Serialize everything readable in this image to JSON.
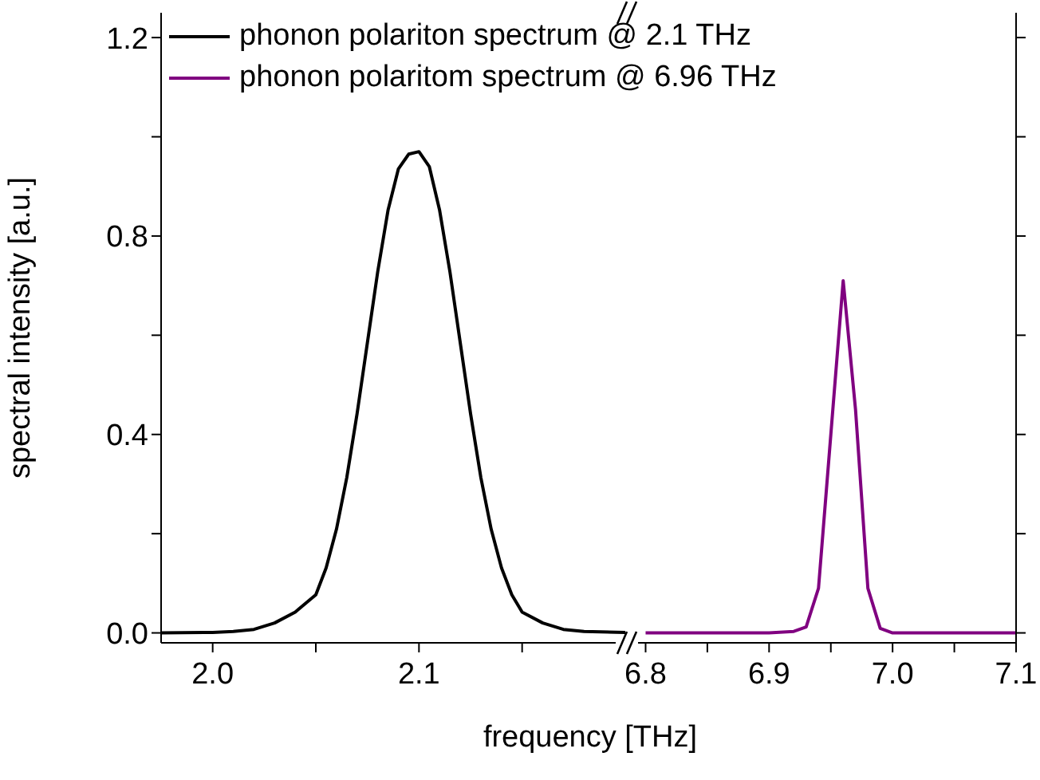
{
  "chart_data": [
    {
      "type": "line",
      "ylabel": "spectral intensity [a.u.]",
      "xlabel": "frequency [THz]",
      "xlim": [
        1.975,
        2.2
      ],
      "xticks": [
        {
          "value": 2,
          "label": "2.0"
        },
        {
          "value": 2.05,
          "label": null
        },
        2.1,
        {
          "value": 2.15,
          "label": null
        }
      ],
      "ylim": [
        -0.02,
        1.25
      ],
      "yticks": [
        {
          "value": 0,
          "label": "0.0"
        },
        {
          "value": 0.2,
          "label": null
        },
        0.4,
        {
          "value": 0.6,
          "label": null
        },
        0.8,
        {
          "value": 1,
          "label": null
        },
        1.2
      ],
      "legend": "top",
      "marker": "none",
      "line_style": "solid",
      "series": [
        {
          "name": "phonon polariton spectrum @ 2.1 THz",
          "color": "#000000",
          "x": [
            1.975,
            2.0,
            2.01,
            2.02,
            2.03,
            2.04,
            2.05,
            2.055,
            2.06,
            2.065,
            2.07,
            2.075,
            2.08,
            2.085,
            2.09,
            2.095,
            2.1,
            2.105,
            2.11,
            2.115,
            2.12,
            2.125,
            2.13,
            2.135,
            2.14,
            2.145,
            2.15,
            2.16,
            2.17,
            2.18,
            2.2
          ],
          "values": [
            0,
            0.001,
            0.003,
            0.007,
            0.02,
            0.042,
            0.077,
            0.131,
            0.209,
            0.313,
            0.442,
            0.585,
            0.728,
            0.852,
            0.935,
            0.965,
            0.97,
            0.94,
            0.852,
            0.728,
            0.585,
            0.442,
            0.313,
            0.209,
            0.131,
            0.077,
            0.042,
            0.02,
            0.007,
            0.003,
            0.001
          ]
        }
      ]
    },
    {
      "type": "line",
      "xlim": [
        6.79,
        7.1
      ],
      "xticks": [
        6.8,
        {
          "value": 6.85,
          "label": null
        },
        6.9,
        {
          "value": 6.95,
          "label": null
        },
        {
          "value": 7,
          "label": "7.0"
        },
        {
          "value": 7.05,
          "label": null
        },
        7.1
      ],
      "ylim": [
        -0.02,
        1.25
      ],
      "yticks": [
        0,
        0.2,
        0.4,
        0.6,
        0.8,
        1,
        1.2
      ],
      "tick_labels": "x",
      "legend": "top left",
      "marker": "none",
      "line_style": "solid",
      "series": [
        {
          "name": "phonon polaritom spectrum @ 6.96 THz",
          "color": "#800080",
          "x": [
            6.8,
            6.85,
            6.9,
            6.92,
            6.93,
            6.94,
            6.95,
            6.96,
            6.97,
            6.98,
            6.99,
            7.0,
            7.05,
            7.1
          ],
          "values": [
            0,
            0,
            0,
            0.003,
            0.012,
            0.09,
            0.4,
            0.71,
            0.45,
            0.09,
            0.009,
            0,
            0,
            0
          ]
        }
      ]
    }
  ]
}
